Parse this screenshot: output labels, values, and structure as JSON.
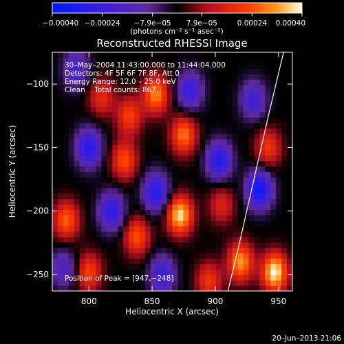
{
  "chart_data": {
    "type": "heatmap",
    "title": "Reconstructed RHESSI Image",
    "xlabel": "Heliocentric X (arcsec)",
    "ylabel": "Heliocentric Y (arcsec)",
    "xlim": [
      771,
      961
    ],
    "ylim": [
      -263,
      -75
    ],
    "x_ticks": [
      800,
      850,
      900,
      950
    ],
    "x_tick_labels": [
      "800",
      "850",
      "900",
      "950"
    ],
    "y_ticks": [
      -100,
      -150,
      -200,
      -250
    ],
    "y_tick_labels": [
      "−100",
      "−150",
      "−200",
      "−250"
    ],
    "colorbar": {
      "range": [
        -0.0004,
        0.0004
      ],
      "ticks": [
        -0.0004,
        -0.00024,
        -7.9e-05,
        7.9e-05,
        0.00024,
        0.0004
      ],
      "tick_labels": [
        "−0.00040",
        "−0.00024",
        "−7.9e−05",
        "7.9e−05",
        "0.00024",
        "0.00040"
      ],
      "units": "(photons cm⁻² s⁻¹ asec⁻²)"
    },
    "annotations": {
      "time_range": "30–May–2004 11:43:00.000 to 11:44:04.000",
      "detectors": "Detectors: 4F 5F 6F 7F 8F, Att 0",
      "energy_range": "Energy Range: 12.0 – 25.0 keV",
      "method_counts": "Clean    Total counts: 867.",
      "peak_position": "Position of Peak = [947,−248]"
    },
    "limb_curve": {
      "x": [
        910,
        918,
        926,
        934,
        942,
        948,
        954
      ],
      "y": [
        -263,
        -230,
        -195,
        -160,
        -125,
        -100,
        -75
      ]
    },
    "peaks": [
      {
        "x": 947,
        "y": -248,
        "value": 0.0004
      },
      {
        "x": 872,
        "y": -203,
        "value": 0.00038
      },
      {
        "x": 853,
        "y": -108,
        "value": 0.0003
      },
      {
        "x": 875,
        "y": -140,
        "value": 0.00028
      },
      {
        "x": 920,
        "y": -240,
        "value": 0.00032
      },
      {
        "x": 782,
        "y": -207,
        "value": 0.00026
      },
      {
        "x": 832,
        "y": -125,
        "value": 0.00022
      },
      {
        "x": 828,
        "y": -160,
        "value": 0.00024
      },
      {
        "x": 800,
        "y": -248,
        "value": 0.00022
      },
      {
        "x": 810,
        "y": -110,
        "value": 0.00018
      },
      {
        "x": 942,
        "y": -150,
        "value": 0.0002
      },
      {
        "x": 838,
        "y": -220,
        "value": 0.00024
      },
      {
        "x": 895,
        "y": -255,
        "value": 0.0002
      },
      {
        "x": 905,
        "y": -195,
        "value": 0.00016
      },
      {
        "x": 800,
        "y": -150,
        "value": -0.0003
      },
      {
        "x": 818,
        "y": -200,
        "value": -0.00028
      },
      {
        "x": 935,
        "y": -183,
        "value": -0.00036
      },
      {
        "x": 853,
        "y": -185,
        "value": -0.0003
      },
      {
        "x": 790,
        "y": -88,
        "value": -0.0002
      },
      {
        "x": 880,
        "y": -105,
        "value": -0.00025
      },
      {
        "x": 903,
        "y": -160,
        "value": -0.0003
      },
      {
        "x": 858,
        "y": -250,
        "value": -0.00024
      },
      {
        "x": 930,
        "y": -112,
        "value": -0.00022
      },
      {
        "x": 780,
        "y": -245,
        "value": -0.00018
      }
    ]
  },
  "footer": {
    "timestamp": "20–Jun–2013 21:06"
  }
}
